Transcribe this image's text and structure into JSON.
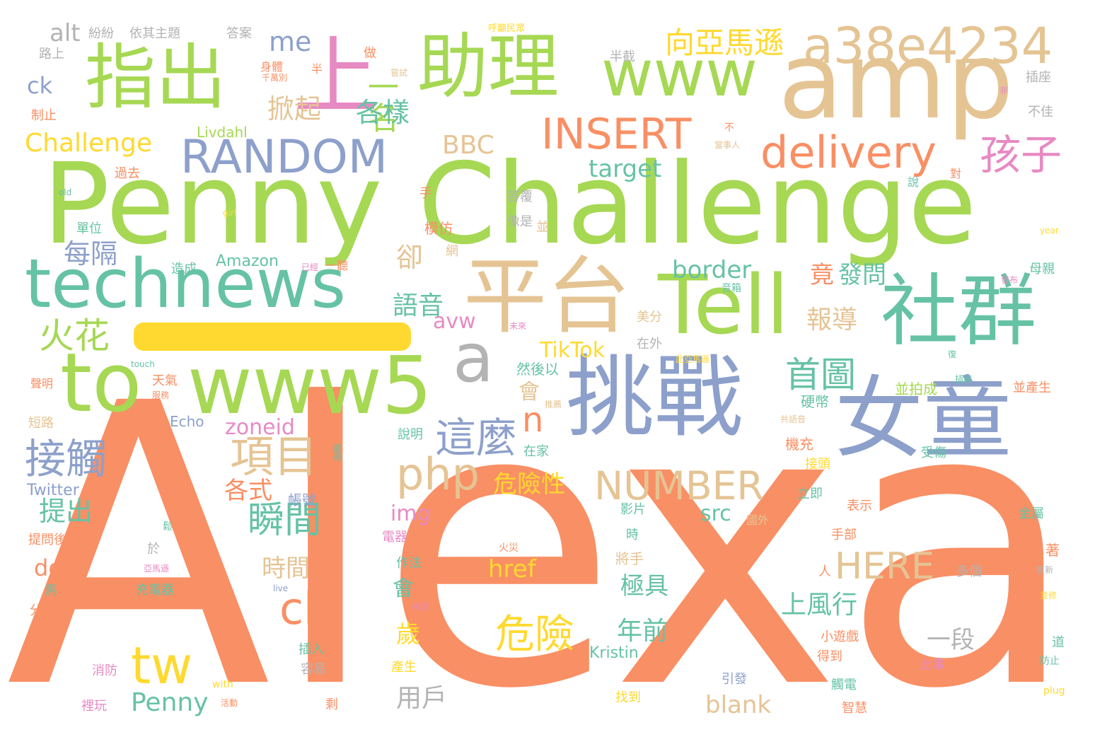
{
  "colors": {
    "orange": "#f98f64",
    "green": "#a6d854",
    "teal": "#66c2a5",
    "blue": "#8da0cb",
    "pink": "#e78ac3",
    "tan": "#e5c494",
    "yellow": "#ffd92f",
    "gray": "#b3b3b3"
  },
  "words": [
    {
      "text": "Alexa",
      "color": "orange"
    },
    {
      "text": "Penny Challenge",
      "color": "green"
    },
    {
      "text": "amp",
      "color": "tan"
    },
    {
      "text": "挑戰",
      "color": "blue"
    },
    {
      "text": "女童",
      "color": "blue"
    },
    {
      "text": "平台",
      "color": "tan"
    },
    {
      "text": "社群",
      "color": "teal"
    },
    {
      "text": "Tell",
      "color": "green"
    },
    {
      "text": "www5",
      "color": "green"
    },
    {
      "text": "to",
      "color": "green"
    },
    {
      "text": "technews",
      "color": "teal"
    },
    {
      "text": "指出",
      "color": "green"
    },
    {
      "text": "助理",
      "color": "green"
    },
    {
      "text": "上",
      "color": "pink"
    },
    {
      "text": "www",
      "color": "green"
    },
    {
      "text": "a38e4234",
      "color": "tan"
    },
    {
      "text": "a",
      "color": "gray"
    },
    {
      "text": "RANDOM",
      "color": "blue"
    },
    {
      "text": "INSERT",
      "color": "orange"
    },
    {
      "text": "delivery",
      "color": "orange"
    },
    {
      "text": "孩子",
      "color": "pink"
    },
    {
      "text": "NUMBER",
      "color": "tan"
    },
    {
      "text": "php",
      "color": "tan"
    },
    {
      "text": "這麼",
      "color": "blue"
    },
    {
      "text": "n",
      "color": "orange"
    },
    {
      "text": "項目",
      "color": "tan"
    },
    {
      "text": "接觸",
      "color": "blue"
    },
    {
      "text": "cb",
      "color": "orange"
    },
    {
      "text": "tw",
      "color": "yellow"
    },
    {
      "text": "火花",
      "color": "green"
    },
    {
      "text": "瞬間",
      "color": "teal"
    },
    {
      "text": "首圖",
      "color": "teal"
    },
    {
      "text": "危險",
      "color": "yellow"
    },
    {
      "text": "HERE",
      "color": "tan"
    },
    {
      "text": "向亞馬遜",
      "color": "yellow"
    },
    {
      "text": "一名",
      "color": "green"
    },
    {
      "text": "me",
      "color": "blue"
    },
    {
      "text": "alt",
      "color": "gray"
    },
    {
      "text": "ck",
      "color": "blue"
    },
    {
      "text": "Challenge",
      "color": "yellow"
    },
    {
      "text": "掀起",
      "color": "tan"
    },
    {
      "text": "各樣",
      "color": "teal"
    },
    {
      "text": "BBC",
      "color": "tan"
    },
    {
      "text": "target",
      "color": "teal"
    },
    {
      "text": "每隔",
      "color": "blue"
    },
    {
      "text": "語音",
      "color": "teal"
    },
    {
      "text": "卻",
      "color": "tan"
    },
    {
      "text": "border",
      "color": "teal"
    },
    {
      "text": "竟",
      "color": "orange"
    },
    {
      "text": "發問",
      "color": "teal"
    },
    {
      "text": "報導",
      "color": "tan"
    },
    {
      "text": "avw",
      "color": "pink"
    },
    {
      "text": "TikTok",
      "color": "yellow"
    },
    {
      "text": "會",
      "color": "tan"
    },
    {
      "text": "zoneid",
      "color": "pink"
    },
    {
      "text": "危險性",
      "color": "yellow"
    },
    {
      "text": "各式",
      "color": "orange"
    },
    {
      "text": "提出",
      "color": "teal"
    },
    {
      "text": "img",
      "color": "pink"
    },
    {
      "text": "src",
      "color": "teal"
    },
    {
      "text": "時間",
      "color": "tan"
    },
    {
      "text": "do",
      "color": "orange"
    },
    {
      "text": "href",
      "color": "yellow"
    },
    {
      "text": "極具",
      "color": "teal"
    },
    {
      "text": "會",
      "color": "teal"
    },
    {
      "text": "上風行",
      "color": "teal"
    },
    {
      "text": "歲",
      "color": "yellow"
    },
    {
      "text": "年前",
      "color": "teal"
    },
    {
      "text": "一段",
      "color": "gray"
    },
    {
      "text": "Penny",
      "color": "teal"
    },
    {
      "text": "用戶",
      "color": "gray"
    },
    {
      "text": "blank",
      "color": "tan"
    },
    {
      "text": "Amazon",
      "color": "teal"
    },
    {
      "text": "Livdahl",
      "color": "green"
    },
    {
      "text": "Echo",
      "color": "blue"
    },
    {
      "text": "Twitter",
      "color": "blue"
    },
    {
      "text": "Kristin",
      "color": "teal"
    },
    {
      "text": "紛紛",
      "color": "gray"
    },
    {
      "text": "依其主題",
      "color": "gray"
    },
    {
      "text": "答案",
      "color": "gray"
    },
    {
      "text": "路上",
      "color": "gray"
    },
    {
      "text": "呼籲民眾",
      "color": "yellow"
    },
    {
      "text": "半截",
      "color": "gray"
    },
    {
      "text": "做",
      "color": "orange"
    },
    {
      "text": "身體",
      "color": "orange"
    },
    {
      "text": "千萬別",
      "color": "orange"
    },
    {
      "text": "半",
      "color": "orange"
    },
    {
      "text": "嘗試",
      "color": "tan"
    },
    {
      "text": "插座",
      "color": "gray"
    },
    {
      "text": "非",
      "color": "pink"
    },
    {
      "text": "不佳",
      "color": "gray"
    },
    {
      "text": "制止",
      "color": "orange"
    },
    {
      "text": "不",
      "color": "orange"
    },
    {
      "text": "當事人",
      "color": "tan"
    },
    {
      "text": "過去",
      "color": "orange"
    },
    {
      "text": "old",
      "color": "teal"
    },
    {
      "text": "girl",
      "color": "yellow"
    },
    {
      "text": "手",
      "color": "orange"
    },
    {
      "text": "單位",
      "color": "teal"
    },
    {
      "text": "答覆",
      "color": "gray"
    },
    {
      "text": "像是",
      "color": "gray"
    },
    {
      "text": "模仿",
      "color": "orange"
    },
    {
      "text": "並",
      "color": "tan"
    },
    {
      "text": "網",
      "color": "tan"
    },
    {
      "text": "說",
      "color": "teal"
    },
    {
      "text": "對",
      "color": "orange"
    },
    {
      "text": "year",
      "color": "yellow"
    },
    {
      "text": "造成",
      "color": "teal"
    },
    {
      "text": "已經",
      "color": "pink"
    },
    {
      "text": "一聽",
      "color": "orange"
    },
    {
      "text": "音箱",
      "color": "teal"
    },
    {
      "text": "母親",
      "color": "teal"
    },
    {
      "text": "發布",
      "color": "pink"
    },
    {
      "text": "美分",
      "color": "tan"
    },
    {
      "text": "未來",
      "color": "pink"
    },
    {
      "text": "在外",
      "color": "gray"
    },
    {
      "text": "此亞馬遜",
      "color": "yellow"
    },
    {
      "text": "復",
      "color": "teal"
    },
    {
      "text": "touch",
      "color": "teal"
    },
    {
      "text": "然後以",
      "color": "teal"
    },
    {
      "text": "聲明",
      "color": "orange"
    },
    {
      "text": "天氣",
      "color": "orange"
    },
    {
      "text": "服務",
      "color": "orange"
    },
    {
      "text": "推薦",
      "color": "tan"
    },
    {
      "text": "硬幣",
      "color": "teal"
    },
    {
      "text": "插誤",
      "color": "teal"
    },
    {
      "text": "並拍成",
      "color": "green"
    },
    {
      "text": "並產生",
      "color": "orange"
    },
    {
      "text": "短路",
      "color": "tan"
    },
    {
      "text": "說明",
      "color": "teal"
    },
    {
      "text": "在家",
      "color": "teal"
    },
    {
      "text": "共語音",
      "color": "tan"
    },
    {
      "text": "還須",
      "color": "teal"
    },
    {
      "text": "機充",
      "color": "orange"
    },
    {
      "text": "接頭",
      "color": "yellow"
    },
    {
      "text": "受傷",
      "color": "teal"
    },
    {
      "text": "帳號",
      "color": "blue"
    },
    {
      "text": "立即",
      "color": "teal"
    },
    {
      "text": "表示",
      "color": "orange"
    },
    {
      "text": "鬆",
      "color": "teal"
    },
    {
      "text": "影片",
      "color": "teal"
    },
    {
      "text": "國外",
      "color": "tan"
    },
    {
      "text": "金屬",
      "color": "teal"
    },
    {
      "text": "提問後竟",
      "color": "orange"
    },
    {
      "text": "電器",
      "color": "pink"
    },
    {
      "text": "時",
      "color": "teal"
    },
    {
      "text": "手部",
      "color": "orange"
    },
    {
      "text": "於",
      "color": "gray"
    },
    {
      "text": "火災",
      "color": "orange"
    },
    {
      "text": "將手",
      "color": "tan"
    },
    {
      "text": "著",
      "color": "orange"
    },
    {
      "text": "亞馬遜",
      "color": "pink"
    },
    {
      "text": "作法",
      "color": "teal"
    },
    {
      "text": "人",
      "color": "orange"
    },
    {
      "text": "多個",
      "color": "gray"
    },
    {
      "text": "更新",
      "color": "gray"
    },
    {
      "text": "馬",
      "color": "teal"
    },
    {
      "text": "充電器",
      "color": "teal"
    },
    {
      "text": "live",
      "color": "blue"
    },
    {
      "text": "來源",
      "color": "pink"
    },
    {
      "text": "並修",
      "color": "yellow"
    },
    {
      "text": "分享",
      "color": "orange"
    },
    {
      "text": "小遊戲",
      "color": "orange"
    },
    {
      "text": "道",
      "color": "teal"
    },
    {
      "text": "插入",
      "color": "teal"
    },
    {
      "text": "得到",
      "color": "orange"
    },
    {
      "text": "防止",
      "color": "teal"
    },
    {
      "text": "消防",
      "color": "pink"
    },
    {
      "text": "產生",
      "color": "yellow"
    },
    {
      "text": "此事",
      "color": "pink"
    },
    {
      "text": "容易",
      "color": "gray"
    },
    {
      "text": "引發",
      "color": "blue"
    },
    {
      "text": "with",
      "color": "yellow"
    },
    {
      "text": "觸電",
      "color": "teal"
    },
    {
      "text": "plug",
      "color": "yellow"
    },
    {
      "text": "裡玩",
      "color": "pink"
    },
    {
      "text": "活動",
      "color": "orange"
    },
    {
      "text": "剩",
      "color": "orange"
    },
    {
      "text": "找到",
      "color": "yellow"
    },
    {
      "text": "智慧",
      "color": "orange"
    }
  ],
  "dash_color": "yellow"
}
